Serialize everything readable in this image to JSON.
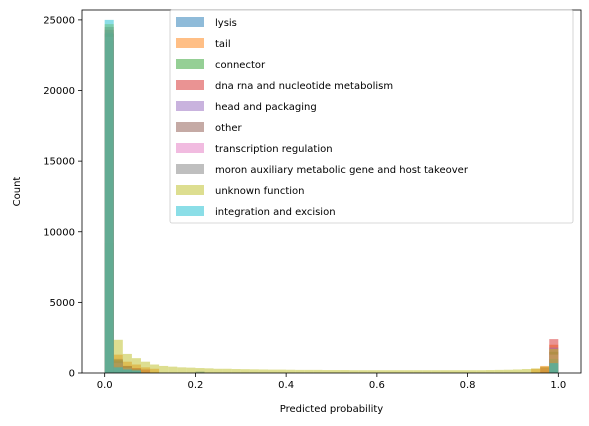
{
  "chart_data": {
    "type": "histogram",
    "title": "",
    "xlabel": "Predicted probability",
    "ylabel": "Count",
    "xlim": [
      -0.05,
      1.05
    ],
    "ylim": [
      0,
      25700
    ],
    "bin_width": 0.02,
    "x_ticks": [
      0.0,
      0.2,
      0.4,
      0.6,
      0.8,
      1.0
    ],
    "x_tick_labels": [
      "0.0",
      "0.2",
      "0.4",
      "0.6",
      "0.8",
      "1.0"
    ],
    "y_ticks": [
      0,
      5000,
      10000,
      15000,
      20000,
      25000
    ],
    "y_tick_labels": [
      "0",
      "5000",
      "10000",
      "15000",
      "20000",
      "25000"
    ],
    "grid": false,
    "legend_position": "top-right",
    "series": [
      {
        "name": "lysis",
        "color": "#1f77b4",
        "bins": [
          [
            0,
            23500
          ],
          [
            1,
            400
          ],
          [
            2,
            250
          ],
          [
            3,
            180
          ],
          [
            10,
            100
          ],
          [
            49,
            900
          ]
        ]
      },
      {
        "name": "tail",
        "color": "#ff7f0e",
        "bins": [
          [
            0,
            24000
          ],
          [
            1,
            1300
          ],
          [
            2,
            800
          ],
          [
            3,
            600
          ],
          [
            4,
            400
          ],
          [
            5,
            300
          ],
          [
            47,
            300
          ],
          [
            48,
            500
          ],
          [
            49,
            2000
          ]
        ]
      },
      {
        "name": "connector",
        "color": "#2ca02c",
        "bins": [
          [
            0,
            9200
          ],
          [
            1,
            500
          ],
          [
            2,
            250
          ],
          [
            3,
            150
          ],
          [
            49,
            600
          ]
        ]
      },
      {
        "name": "dna rna and nucleotide metabolism",
        "color": "#d62728",
        "bins": [
          [
            0,
            24300
          ],
          [
            1,
            900
          ],
          [
            2,
            500
          ],
          [
            3,
            350
          ],
          [
            4,
            250
          ],
          [
            48,
            400
          ],
          [
            49,
            2400
          ]
        ]
      },
      {
        "name": "head and packaging",
        "color": "#9467bd",
        "bins": [
          [
            0,
            24100
          ],
          [
            1,
            800
          ],
          [
            2,
            400
          ],
          [
            3,
            250
          ],
          [
            49,
            1800
          ]
        ]
      },
      {
        "name": "other",
        "color": "#8c564b",
        "bins": [
          [
            0,
            24500
          ],
          [
            1,
            1000
          ],
          [
            2,
            500
          ],
          [
            3,
            300
          ],
          [
            49,
            1500
          ]
        ]
      },
      {
        "name": "transcription regulation",
        "color": "#e377c2",
        "bins": [
          [
            0,
            23800
          ],
          [
            1,
            700
          ],
          [
            2,
            350
          ],
          [
            3,
            200
          ],
          [
            49,
            1300
          ]
        ]
      },
      {
        "name": "moron auxiliary metabolic gene and host takeover",
        "color": "#7f7f7f",
        "bins": [
          [
            0,
            24000
          ],
          [
            1,
            900
          ],
          [
            2,
            400
          ],
          [
            3,
            250
          ],
          [
            49,
            1000
          ]
        ]
      },
      {
        "name": "unknown function",
        "color": "#bcbd22",
        "bins": [
          [
            0,
            24700
          ],
          [
            1,
            2350
          ],
          [
            2,
            1350
          ],
          [
            3,
            1050
          ],
          [
            4,
            800
          ],
          [
            5,
            600
          ],
          [
            6,
            500
          ],
          [
            7,
            450
          ],
          [
            8,
            400
          ],
          [
            9,
            380
          ],
          [
            10,
            350
          ],
          [
            11,
            330
          ],
          [
            12,
            300
          ],
          [
            13,
            300
          ],
          [
            14,
            280
          ],
          [
            15,
            270
          ],
          [
            16,
            260
          ],
          [
            17,
            250
          ],
          [
            18,
            240
          ],
          [
            19,
            240
          ],
          [
            20,
            230
          ],
          [
            21,
            220
          ],
          [
            22,
            220
          ],
          [
            23,
            220
          ],
          [
            24,
            210
          ],
          [
            25,
            210
          ],
          [
            26,
            210
          ],
          [
            27,
            200
          ],
          [
            28,
            200
          ],
          [
            29,
            200
          ],
          [
            30,
            200
          ],
          [
            31,
            200
          ],
          [
            32,
            200
          ],
          [
            33,
            200
          ],
          [
            34,
            200
          ],
          [
            35,
            200
          ],
          [
            36,
            200
          ],
          [
            37,
            200
          ],
          [
            38,
            200
          ],
          [
            39,
            200
          ],
          [
            40,
            200
          ],
          [
            41,
            200
          ],
          [
            42,
            210
          ],
          [
            43,
            220
          ],
          [
            44,
            230
          ],
          [
            45,
            250
          ],
          [
            46,
            280
          ],
          [
            47,
            320
          ],
          [
            48,
            450
          ],
          [
            49,
            1700
          ]
        ]
      },
      {
        "name": "integration and excision",
        "color": "#17becf",
        "bins": [
          [
            0,
            25000
          ],
          [
            1,
            400
          ],
          [
            2,
            250
          ],
          [
            3,
            180
          ],
          [
            49,
            700
          ]
        ]
      }
    ]
  }
}
